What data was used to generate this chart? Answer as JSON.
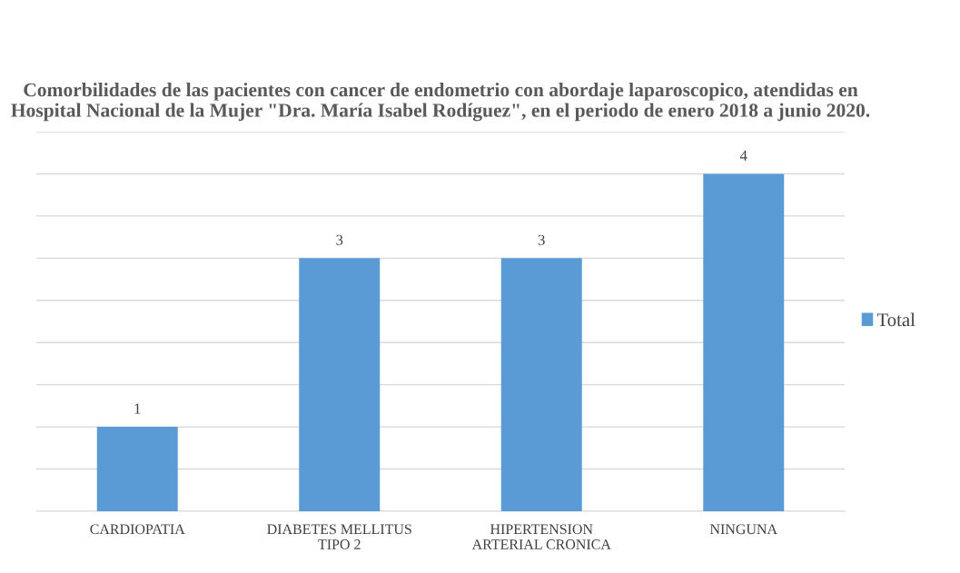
{
  "chart_data": {
    "type": "bar",
    "title": "Comorbilidades de las pacientes con cancer de endometrio con abordaje laparoscopico, atendidas en Hospital Nacional de la Mujer \"Dra. María Isabel Rodíguez\", en el periodo de enero 2018 a junio 2020.",
    "categories": [
      "CARDIOPATIA",
      "DIABETES MELLITUS\nTIPO 2",
      "HIPERTENSION\nARTERIAL CRONICA",
      "NINGUNA"
    ],
    "series": [
      {
        "name": "Total",
        "color": "#5b9bd5",
        "values": [
          1,
          3,
          3,
          4
        ]
      }
    ],
    "ylim": [
      0,
      4.5
    ],
    "yticks": [
      {
        "value": 0,
        "label": null
      },
      {
        "value": 0.5,
        "label": null
      },
      {
        "value": 1,
        "label": null
      },
      {
        "value": 1.5,
        "label": null
      },
      {
        "value": 2,
        "label": null
      },
      {
        "value": 2.5,
        "label": null
      },
      {
        "value": 3,
        "label": null
      },
      {
        "value": 3.5,
        "label": null
      },
      {
        "value": 4,
        "label": null
      },
      {
        "value": 4.5,
        "label": null
      }
    ],
    "tick_labels": "x",
    "grid": "y",
    "legend": "right",
    "data_labels": true
  }
}
